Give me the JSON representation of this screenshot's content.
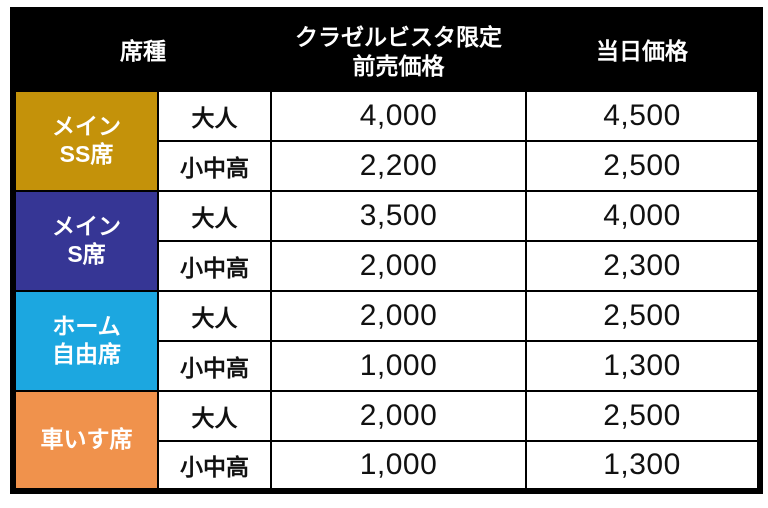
{
  "table": {
    "header": {
      "seat_type": "席種",
      "advance_price_line1": "クラゼルビスタ限定",
      "advance_price_line2": "前売価格",
      "day_price": "当日価格"
    },
    "header_colors": {
      "background": "#000000",
      "text": "#ffffff"
    },
    "groups": [
      {
        "name_lines": [
          "メイン",
          "SS席"
        ],
        "color": "#C4920A",
        "rows": [
          {
            "age": "大人",
            "advance": "4,000",
            "day": "4,500"
          },
          {
            "age": "小中高",
            "advance": "2,200",
            "day": "2,500"
          }
        ]
      },
      {
        "name_lines": [
          "メイン",
          "S席"
        ],
        "color": "#363695",
        "rows": [
          {
            "age": "大人",
            "advance": "3,500",
            "day": "4,000"
          },
          {
            "age": "小中高",
            "advance": "2,000",
            "day": "2,300"
          }
        ]
      },
      {
        "name_lines": [
          "ホーム",
          "自由席"
        ],
        "color": "#1CA7E0",
        "rows": [
          {
            "age": "大人",
            "advance": "2,000",
            "day": "2,500"
          },
          {
            "age": "小中高",
            "advance": "1,000",
            "day": "1,300"
          }
        ]
      },
      {
        "name_lines": [
          "車いす席"
        ],
        "color": "#F0924C",
        "rows": [
          {
            "age": "大人",
            "advance": "2,000",
            "day": "2,500"
          },
          {
            "age": "小中高",
            "advance": "1,000",
            "day": "1,300"
          }
        ]
      }
    ]
  }
}
